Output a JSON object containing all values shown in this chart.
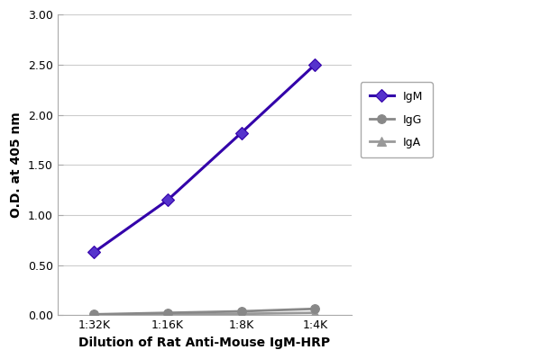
{
  "x_labels": [
    "1:32K",
    "1:16K",
    "1:8K",
    "1:4K"
  ],
  "x_positions": [
    0,
    1,
    2,
    3
  ],
  "series": [
    {
      "name": "IgM",
      "values": [
        0.63,
        1.15,
        1.82,
        2.5
      ],
      "color": "#3300aa",
      "marker": "D",
      "marker_facecolor": "#5533cc",
      "marker_edgecolor": "#3300aa",
      "linewidth": 2.2,
      "markersize": 7,
      "zorder": 5
    },
    {
      "name": "IgG",
      "values": [
        0.01,
        0.025,
        0.04,
        0.065
      ],
      "color": "#888888",
      "marker": "o",
      "marker_facecolor": "#888888",
      "marker_edgecolor": "#888888",
      "linewidth": 2.0,
      "markersize": 7,
      "zorder": 4
    },
    {
      "name": "IgA",
      "values": [
        0.005,
        0.01,
        0.015,
        0.025
      ],
      "color": "#999999",
      "marker": "^",
      "marker_facecolor": "#999999",
      "marker_edgecolor": "#999999",
      "linewidth": 2.0,
      "markersize": 7,
      "zorder": 3
    }
  ],
  "ylabel": "O.D. at 405 nm",
  "xlabel": "Dilution of Rat Anti-Mouse IgM-HRP",
  "ylim": [
    0.0,
    3.0
  ],
  "yticks": [
    0.0,
    0.5,
    1.0,
    1.5,
    2.0,
    2.5,
    3.0
  ],
  "ytick_labels": [
    "0.00",
    "0.50",
    "1.00",
    "1.50",
    "2.00",
    "2.50",
    "3.00"
  ],
  "plot_bg_color": "#ffffff",
  "fig_bg_color": "#ffffff",
  "grid_color": "#cccccc",
  "spine_color": "#aaaaaa",
  "axis_label_fontsize": 10,
  "tick_fontsize": 9,
  "legend_fontsize": 9
}
